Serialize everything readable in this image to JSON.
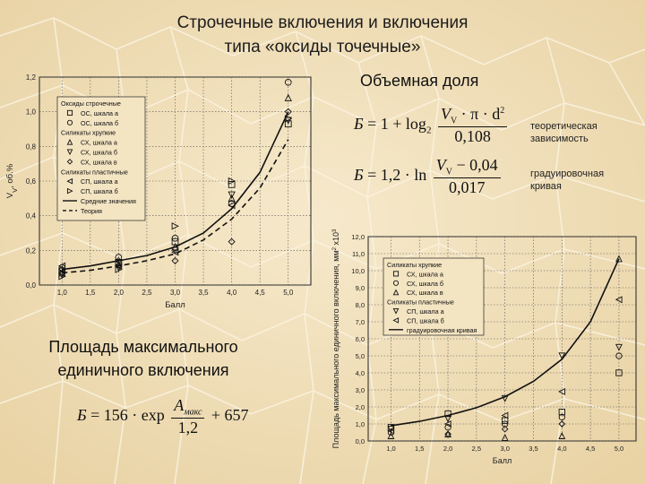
{
  "slide": {
    "title_line1": "Строчечные включения и включения",
    "title_line2": "типа «оксиды точечные»",
    "volume_fraction_label": "Объемная доля",
    "area_label_line1": "Площадь максимального",
    "area_label_line2": "единичного включения",
    "theoretical_label_line1": "теоретическая",
    "theoretical_label_line2": "зависимость",
    "calibration_label_line1": "градуировочная",
    "calibration_label_line2": "кривая"
  },
  "formulas": {
    "f1": {
      "lhs": "Б",
      "eq": "= 1 + log",
      "base": "2",
      "num": "V",
      "num_sub": "V",
      "num_rest": " · π · d",
      "num_sup": "2",
      "den": "0,108"
    },
    "f2": {
      "lhs": "Б",
      "eq": "= 1,2 · ln",
      "num": "V",
      "num_sub": "V",
      "num_rest": " − 0,04",
      "den": "0,017"
    },
    "f3": {
      "lhs": "Б",
      "eq": "= 156 · exp",
      "num": "A",
      "num_sub": "макс",
      "den": "1,2",
      "tail": "+ 657"
    }
  },
  "chart_data": [
    {
      "type": "scatter",
      "ylabel": "V",
      "ylabel_sub": "V",
      "ylabel_rest": ", об.%",
      "xlabel": "Балл",
      "xlim": [
        0.6,
        5.4
      ],
      "ylim": [
        0.0,
        1.2
      ],
      "xticks": [
        "1,0",
        "1,5",
        "2,0",
        "2,5",
        "3,0",
        "3,5",
        "4,0",
        "4,5",
        "5,0"
      ],
      "yticks": [
        "0,0",
        "0,2",
        "0,4",
        "0,6",
        "0,8",
        "1,0",
        "1,2"
      ],
      "legend_position": "top-left",
      "legend": [
        {
          "text": "Оксиды строчечные",
          "marker": "none"
        },
        {
          "text": "ОС, шкала а",
          "marker": "square"
        },
        {
          "text": "ОС, шкала б",
          "marker": "circle"
        },
        {
          "text": "Силикаты хрупкие",
          "marker": "none"
        },
        {
          "text": "СХ, шкала а",
          "marker": "triangle-up"
        },
        {
          "text": "СХ, шкала б",
          "marker": "triangle-down"
        },
        {
          "text": "СХ, шкала в",
          "marker": "diamond"
        },
        {
          "text": "Силикаты пластичные",
          "marker": "none"
        },
        {
          "text": "СП, шкала а",
          "marker": "triangle-left"
        },
        {
          "text": "СП, шкала б",
          "marker": "triangle-right"
        },
        {
          "text": "Средние значения",
          "marker": "line-solid"
        },
        {
          "text": "Теория",
          "marker": "line-dashed"
        }
      ],
      "series": [
        {
          "marker": "square",
          "points": [
            [
              1,
              0.08
            ],
            [
              2,
              0.13
            ],
            [
              3,
              0.25
            ],
            [
              4,
              0.58
            ],
            [
              5,
              0.93
            ]
          ]
        },
        {
          "marker": "circle",
          "points": [
            [
              1,
              0.1
            ],
            [
              2,
              0.16
            ],
            [
              3,
              0.27
            ],
            [
              4,
              0.47
            ],
            [
              5,
              1.17
            ]
          ]
        },
        {
          "marker": "triangle-up",
          "points": [
            [
              1,
              0.07
            ],
            [
              2,
              0.12
            ],
            [
              3,
              0.22
            ],
            [
              4,
              0.5
            ],
            [
              5,
              1.08
            ]
          ]
        },
        {
          "marker": "triangle-down",
          "points": [
            [
              1,
              0.06
            ],
            [
              2,
              0.1
            ],
            [
              3,
              0.2
            ],
            [
              4,
              0.52
            ],
            [
              5,
              0.95
            ]
          ]
        },
        {
          "marker": "diamond",
          "points": [
            [
              1,
              0.09
            ],
            [
              2,
              0.14
            ],
            [
              3,
              0.14
            ],
            [
              4,
              0.25
            ],
            [
              5,
              1.0
            ]
          ]
        },
        {
          "marker": "triangle-left",
          "points": [
            [
              1,
              0.11
            ],
            [
              2,
              0.11
            ],
            [
              3,
              0.19
            ],
            [
              4,
              0.46
            ]
          ]
        },
        {
          "marker": "triangle-right",
          "points": [
            [
              1,
              0.05
            ],
            [
              2,
              0.09
            ],
            [
              3,
              0.34
            ],
            [
              4,
              0.6
            ],
            [
              5,
              0.96
            ]
          ]
        }
      ],
      "lines": [
        {
          "style": "solid",
          "points": [
            [
              1.0,
              0.09
            ],
            [
              1.5,
              0.11
            ],
            [
              2.0,
              0.14
            ],
            [
              2.5,
              0.17
            ],
            [
              3.0,
              0.22
            ],
            [
              3.5,
              0.3
            ],
            [
              4.0,
              0.44
            ],
            [
              4.5,
              0.65
            ],
            [
              5.0,
              1.0
            ]
          ]
        },
        {
          "style": "dashed",
          "points": [
            [
              1.0,
              0.07
            ],
            [
              1.5,
              0.085
            ],
            [
              2.0,
              0.11
            ],
            [
              2.5,
              0.14
            ],
            [
              3.0,
              0.18
            ],
            [
              3.5,
              0.26
            ],
            [
              4.0,
              0.38
            ],
            [
              4.5,
              0.56
            ],
            [
              5.0,
              0.84
            ]
          ]
        }
      ]
    },
    {
      "type": "scatter",
      "ylabel": "Площадь максимального единичного включения, мм",
      "ylabel_sup": "2",
      "ylabel_rest": " x10",
      "ylabel_sup2": "3",
      "xlabel": "Балл",
      "xlim": [
        0.6,
        5.3
      ],
      "ylim": [
        0.0,
        12.0
      ],
      "xticks": [
        "1,0",
        "1,5",
        "2,0",
        "2,5",
        "3,0",
        "3,5",
        "4,0",
        "4,5",
        "5,0"
      ],
      "yticks": [
        "0,0",
        "1,0",
        "2,0",
        "3,0",
        "4,0",
        "5,0",
        "6,0",
        "7,0",
        "8,0",
        "9,0",
        "10,0",
        "11,0",
        "12,0"
      ],
      "legend_position": "top-left",
      "legend": [
        {
          "text": "Силикаты хрупкие",
          "marker": "none"
        },
        {
          "text": "СХ, шкала а",
          "marker": "square"
        },
        {
          "text": "СХ, шкала б",
          "marker": "circle"
        },
        {
          "text": "СХ, шкала в",
          "marker": "triangle-up"
        },
        {
          "text": "Силикаты пластичные",
          "marker": "none"
        },
        {
          "text": "СП, шкала а",
          "marker": "triangle-down"
        },
        {
          "text": "СП, шкала б",
          "marker": "triangle-left"
        },
        {
          "text": "градуировочная кривая",
          "marker": "line-solid"
        }
      ],
      "series": [
        {
          "marker": "square",
          "points": [
            [
              1,
              0.8
            ],
            [
              2,
              1.6
            ],
            [
              3,
              1.2
            ],
            [
              4,
              1.7
            ],
            [
              5,
              4.0
            ]
          ]
        },
        {
          "marker": "circle",
          "points": [
            [
              1,
              0.5
            ],
            [
              2,
              0.8
            ],
            [
              3,
              1.0
            ],
            [
              4,
              1.4
            ],
            [
              5,
              5.0
            ]
          ]
        },
        {
          "marker": "triangle-up",
          "points": [
            [
              1,
              0.3
            ],
            [
              2,
              0.4
            ],
            [
              3,
              0.2
            ],
            [
              4,
              0.3
            ],
            [
              5,
              10.7
            ]
          ]
        },
        {
          "marker": "triangle-down",
          "points": [
            [
              1,
              0.7
            ],
            [
              2,
              1.3
            ],
            [
              3,
              2.5
            ],
            [
              4,
              5.0
            ],
            [
              5,
              5.5
            ]
          ]
        },
        {
          "marker": "triangle-left",
          "points": [
            [
              1,
              0.6
            ],
            [
              2,
              1.0
            ],
            [
              3,
              1.5
            ],
            [
              4,
              2.9
            ],
            [
              5,
              8.3
            ]
          ]
        },
        {
          "marker": "diamond",
          "points": [
            [
              2,
              0.4
            ],
            [
              3,
              0.7
            ],
            [
              4,
              1.0
            ]
          ]
        }
      ],
      "lines": [
        {
          "style": "solid",
          "points": [
            [
              1.0,
              0.9
            ],
            [
              1.5,
              1.15
            ],
            [
              2.0,
              1.5
            ],
            [
              2.5,
              1.95
            ],
            [
              3.0,
              2.6
            ],
            [
              3.5,
              3.5
            ],
            [
              4.0,
              4.8
            ],
            [
              4.5,
              7.0
            ],
            [
              5.0,
              10.7
            ]
          ]
        }
      ]
    }
  ]
}
